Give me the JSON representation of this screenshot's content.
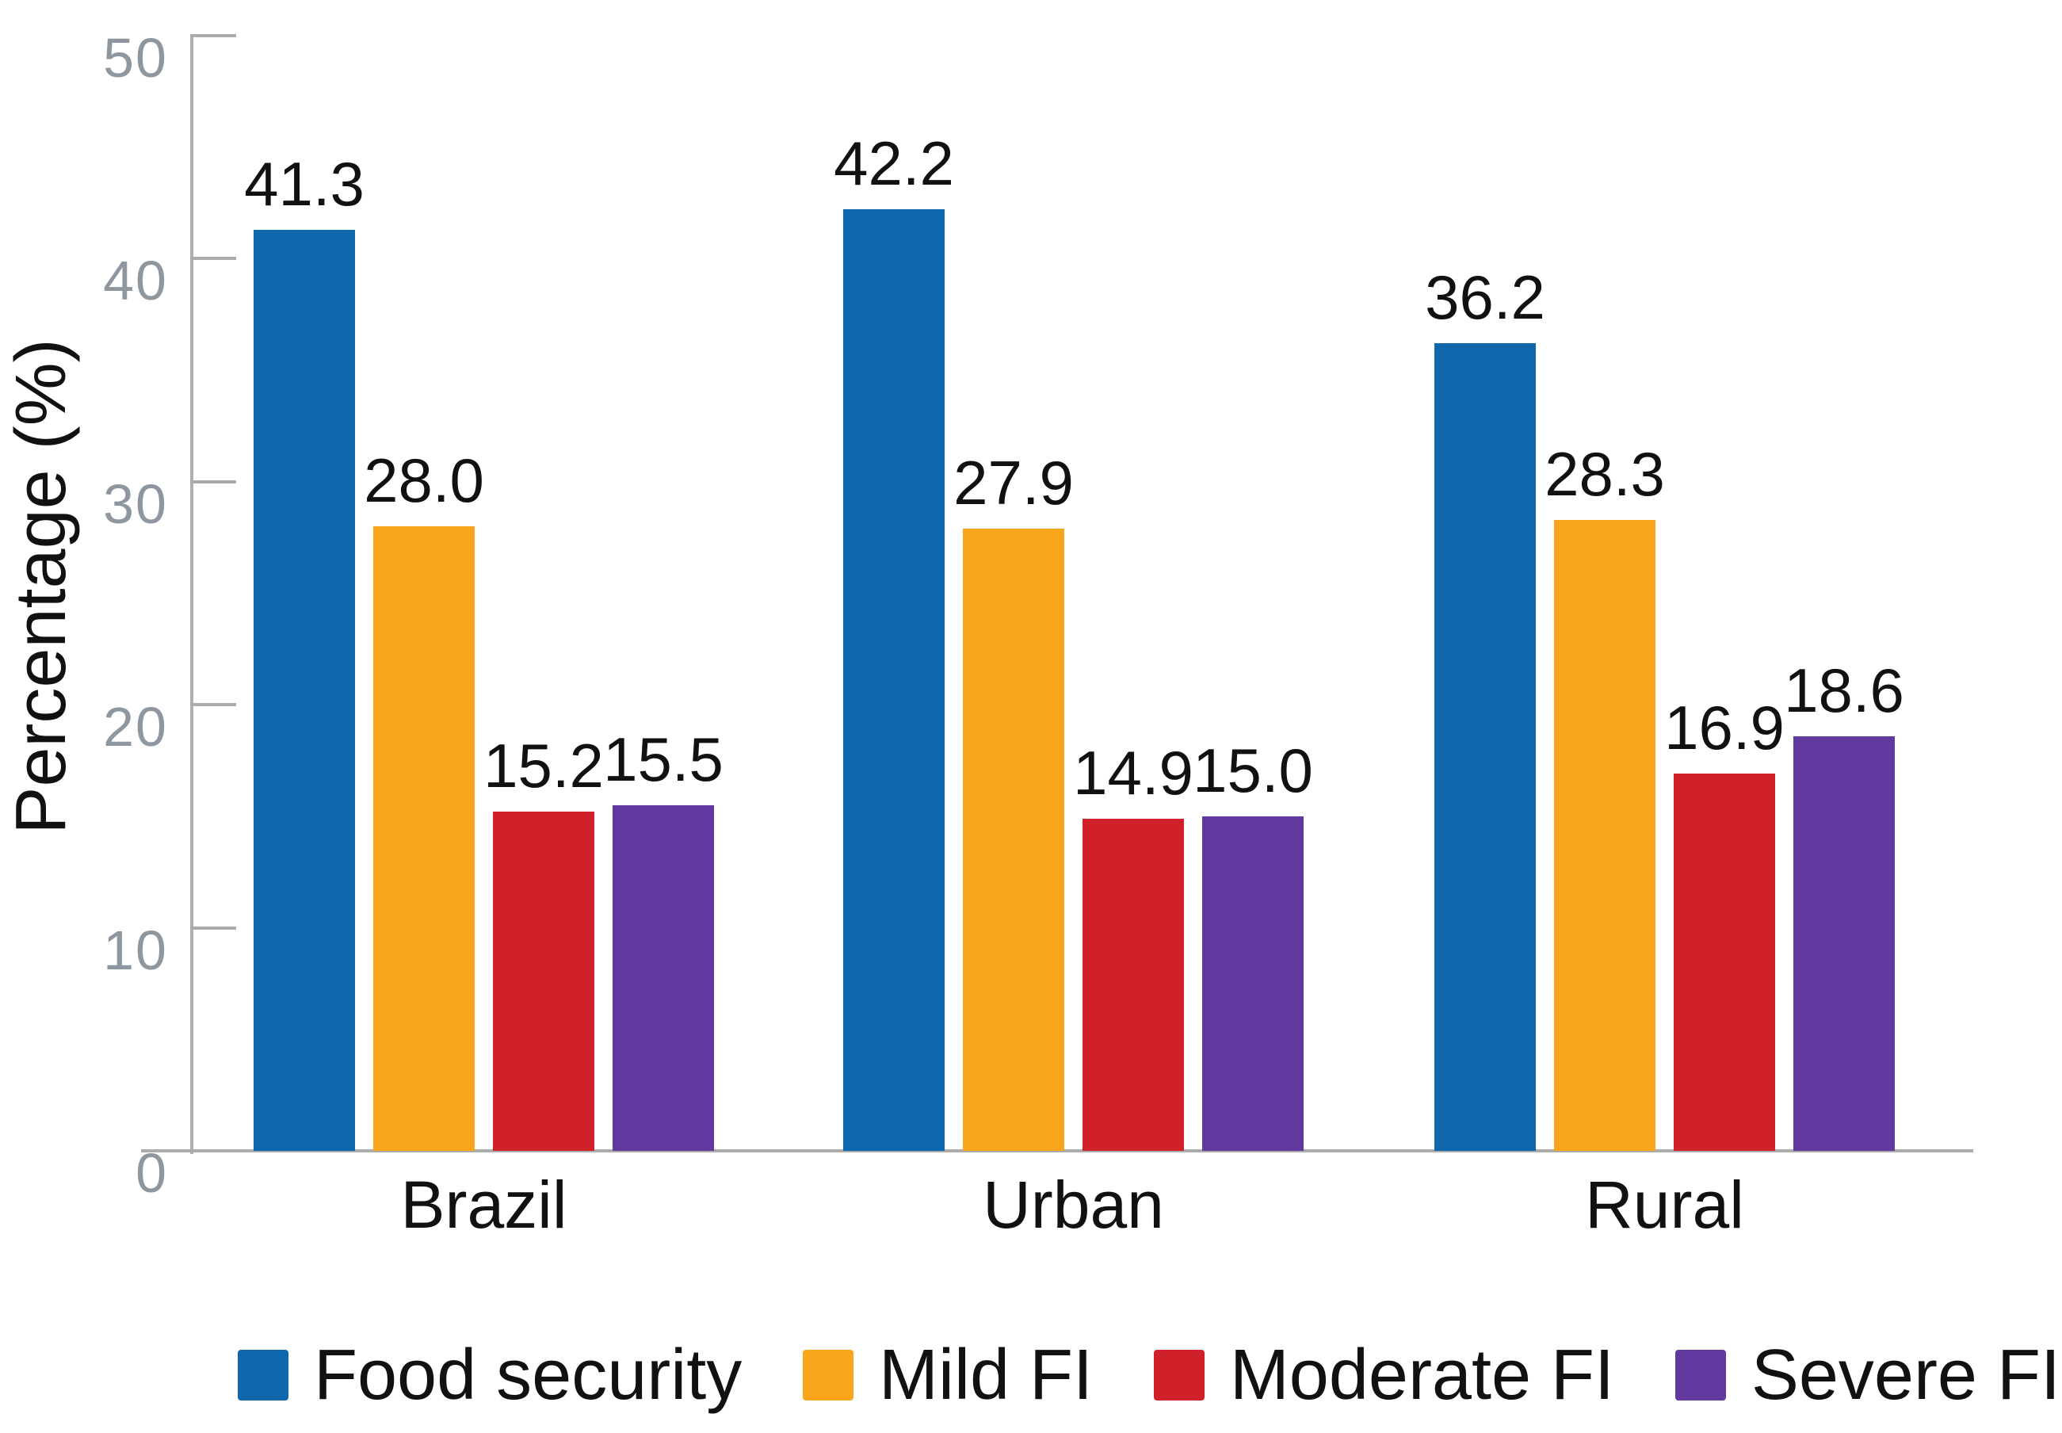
{
  "chart_data": {
    "type": "bar",
    "title": "",
    "xlabel": "",
    "ylabel": "Percentage (%)",
    "ylim": [
      0,
      50
    ],
    "yticks": [
      0,
      10,
      20,
      30,
      40,
      50
    ],
    "categories": [
      "Brazil",
      "Urban",
      "Rural"
    ],
    "series": [
      {
        "name": "Food security",
        "color": "#0F67AE",
        "values": [
          41.3,
          42.2,
          36.2
        ]
      },
      {
        "name": "Mild FI",
        "color": "#FAA61D",
        "values": [
          28.0,
          27.9,
          28.3
        ]
      },
      {
        "name": "Moderate FI",
        "color": "#D0202A",
        "values": [
          15.2,
          14.9,
          16.9
        ]
      },
      {
        "name": "Severe FI",
        "color": "#61399F",
        "values": [
          15.5,
          15.0,
          18.6
        ]
      }
    ],
    "value_labels": true,
    "value_label_decimals": 1,
    "legend_position": "bottom",
    "grid": false,
    "axis_color": "#ABABAB",
    "tick_label_color": "#8E96A0",
    "background_color": "#FFFFFF"
  }
}
